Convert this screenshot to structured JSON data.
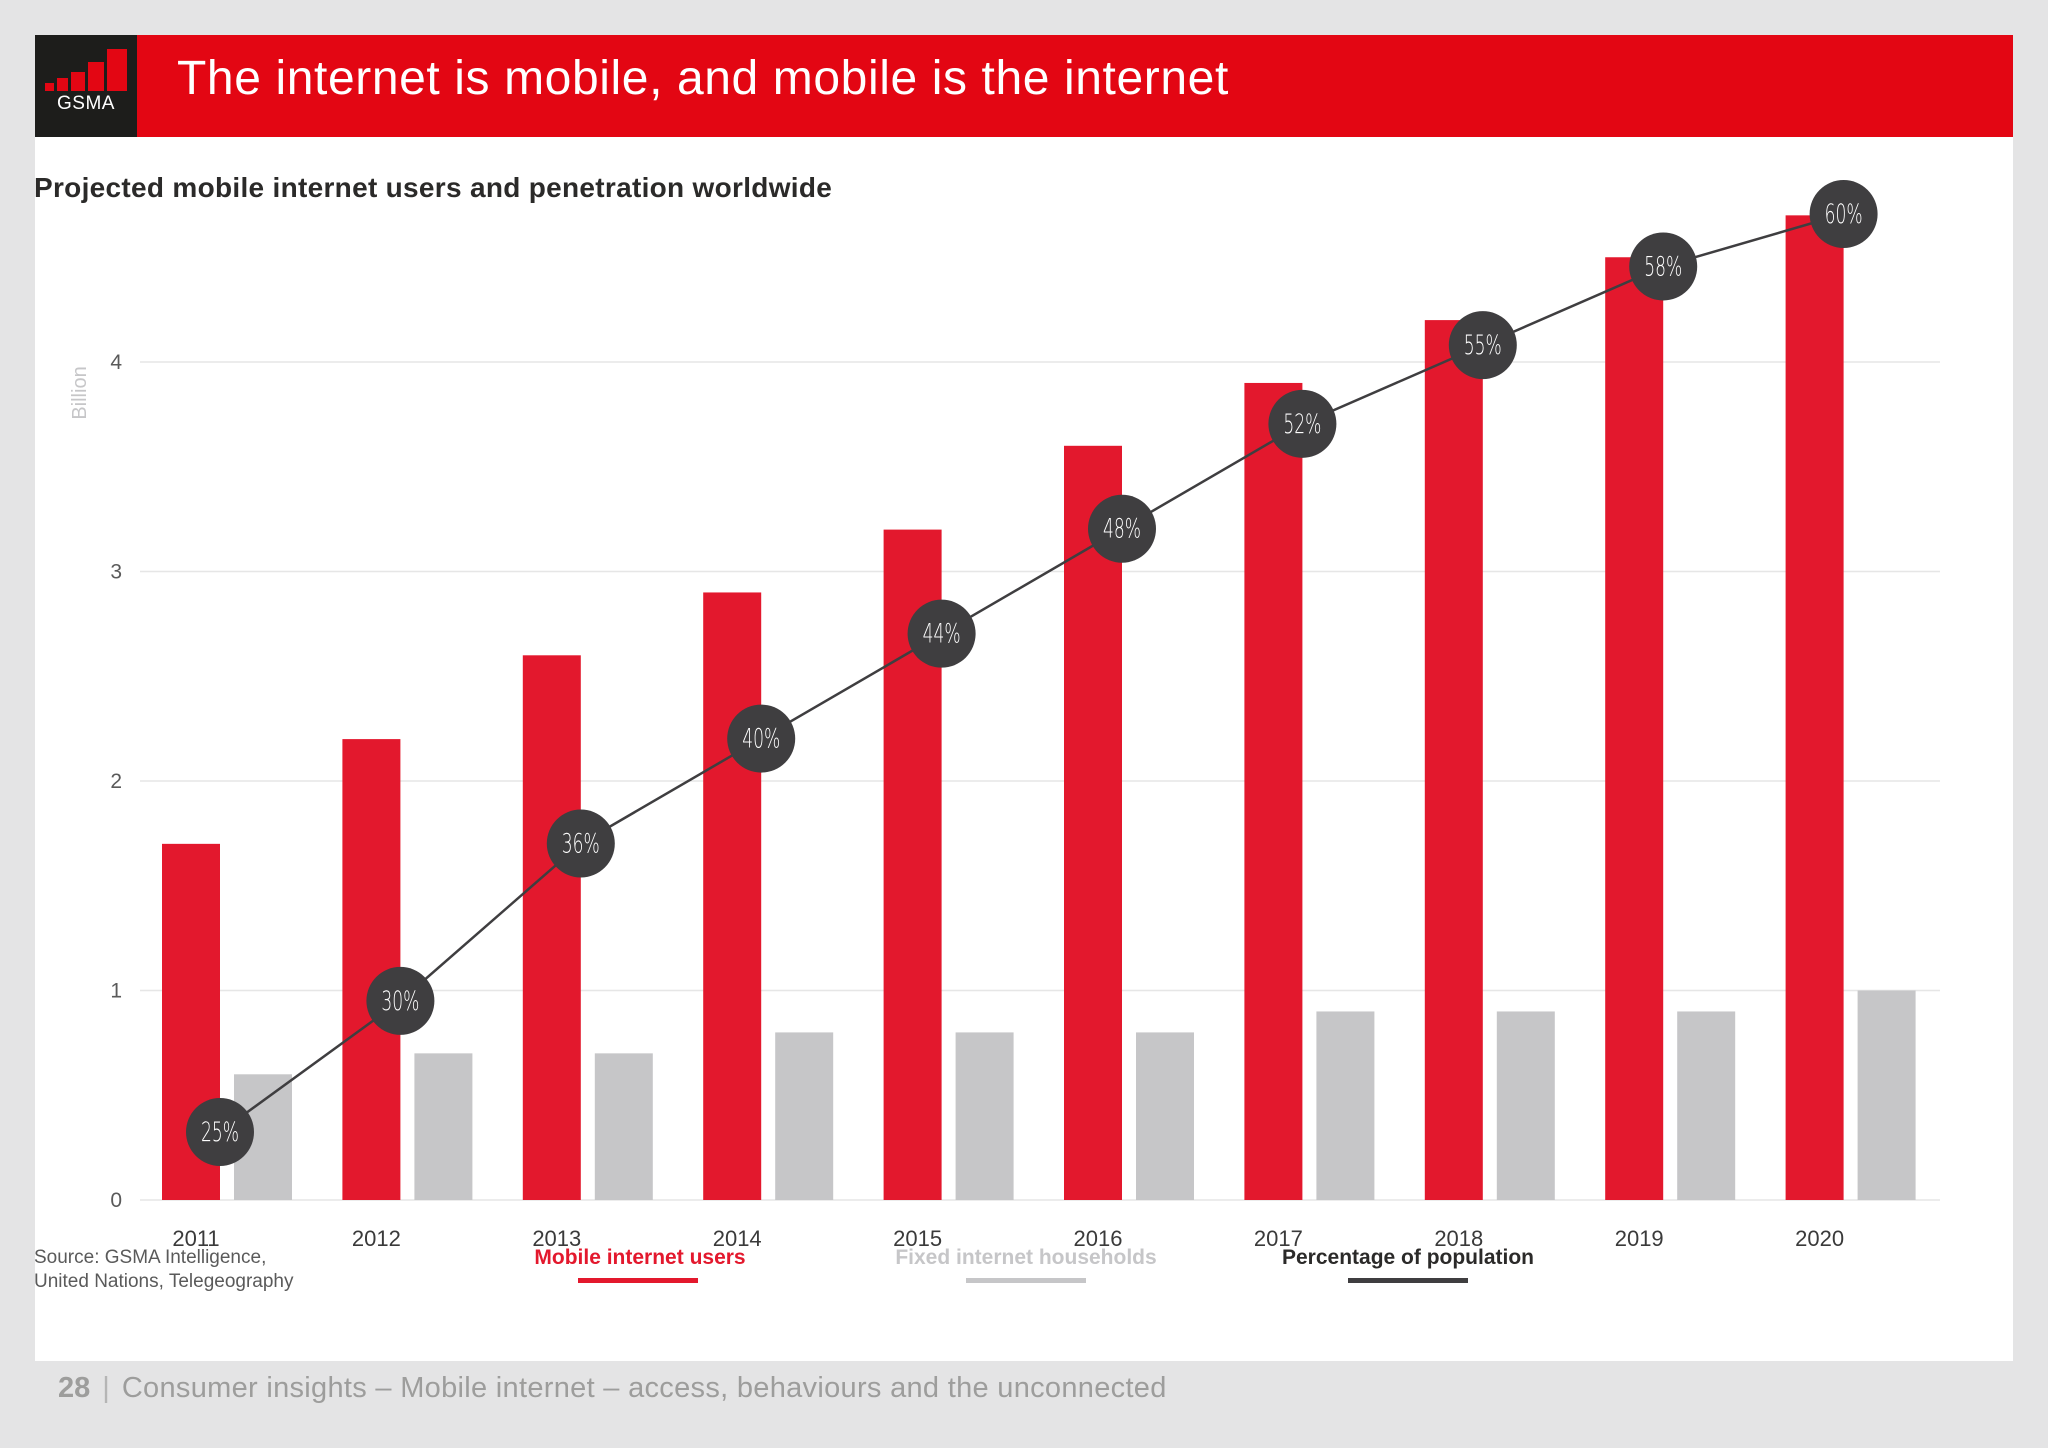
{
  "header": {
    "logo_text": "GSMA",
    "title": "The internet is mobile, and mobile is the internet"
  },
  "colors": {
    "accent_red": "#e3182d",
    "bar_grey": "#c6c6c8",
    "line_dark": "#3f3e40",
    "header_red": "#e30613"
  },
  "chart_data": {
    "type": "bar",
    "title": "Projected mobile internet users and penetration worldwide",
    "ylabel": "Billion",
    "xlabel": "",
    "ylim": [
      0,
      4.5
    ],
    "yticks": [
      0,
      1,
      2,
      3,
      4
    ],
    "grid": true,
    "categories": [
      "2011",
      "2012",
      "2013",
      "2014",
      "2015",
      "2016",
      "2017",
      "2018",
      "2019",
      "2020"
    ],
    "series": [
      {
        "name": "Mobile internet users",
        "type": "bar",
        "color": "#e3182d",
        "values": [
          1.7,
          2.2,
          2.6,
          2.9,
          3.2,
          3.6,
          3.9,
          4.2,
          4.5,
          4.7
        ]
      },
      {
        "name": "Fixed internet households",
        "type": "bar",
        "color": "#c6c6c8",
        "values": [
          0.6,
          0.7,
          0.7,
          0.8,
          0.8,
          0.8,
          0.9,
          0.9,
          0.9,
          1.0
        ]
      },
      {
        "name": "Percentage of population",
        "type": "line",
        "color": "#3f3e40",
        "values": [
          25,
          30,
          36,
          40,
          44,
          48,
          52,
          55,
          58,
          60
        ],
        "labels": [
          "25%",
          "30%",
          "36%",
          "40%",
          "44%",
          "48%",
          "52%",
          "55%",
          "58%",
          "60%"
        ]
      }
    ],
    "legend": {
      "placement": "bottom",
      "items": [
        "Mobile internet users",
        "Fixed internet households",
        "Percentage of population"
      ]
    }
  },
  "source": {
    "line1": "Source: GSMA Intelligence,",
    "line2": "United Nations, Telegeography"
  },
  "footer": {
    "page_number": "28",
    "separator": "|",
    "text": "Consumer insights – Mobile internet – access, behaviours and the unconnected"
  }
}
